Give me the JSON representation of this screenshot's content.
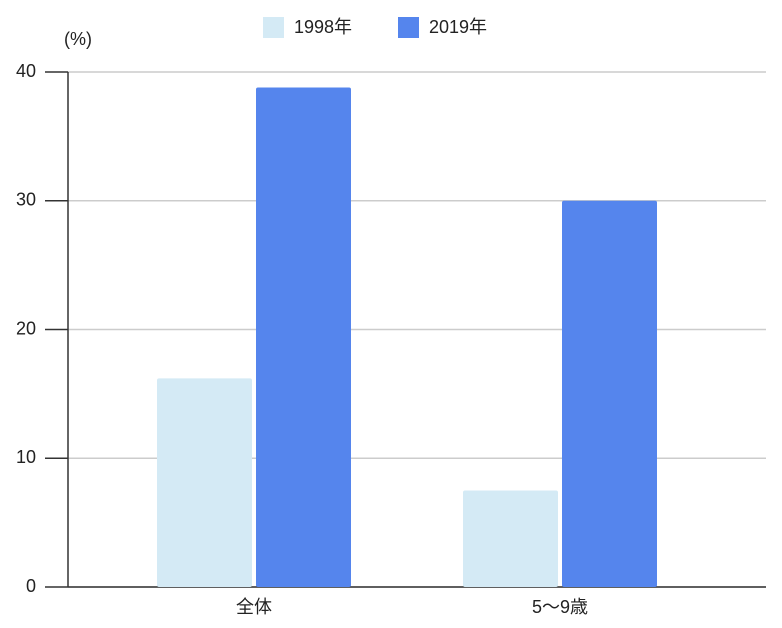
{
  "chart_data": {
    "type": "bar",
    "unit_label": "(%)",
    "categories": [
      "全体",
      "5〜9歳"
    ],
    "series": [
      {
        "name": "1998年",
        "color": "#d4eaf5",
        "values": [
          16.2,
          7.5
        ]
      },
      {
        "name": "2019年",
        "color": "#5585ed",
        "values": [
          38.8,
          30.0
        ]
      }
    ],
    "ylim": [
      0,
      40
    ],
    "yticks": [
      0,
      10,
      20,
      30,
      40
    ],
    "grid": true,
    "legend": "top"
  }
}
